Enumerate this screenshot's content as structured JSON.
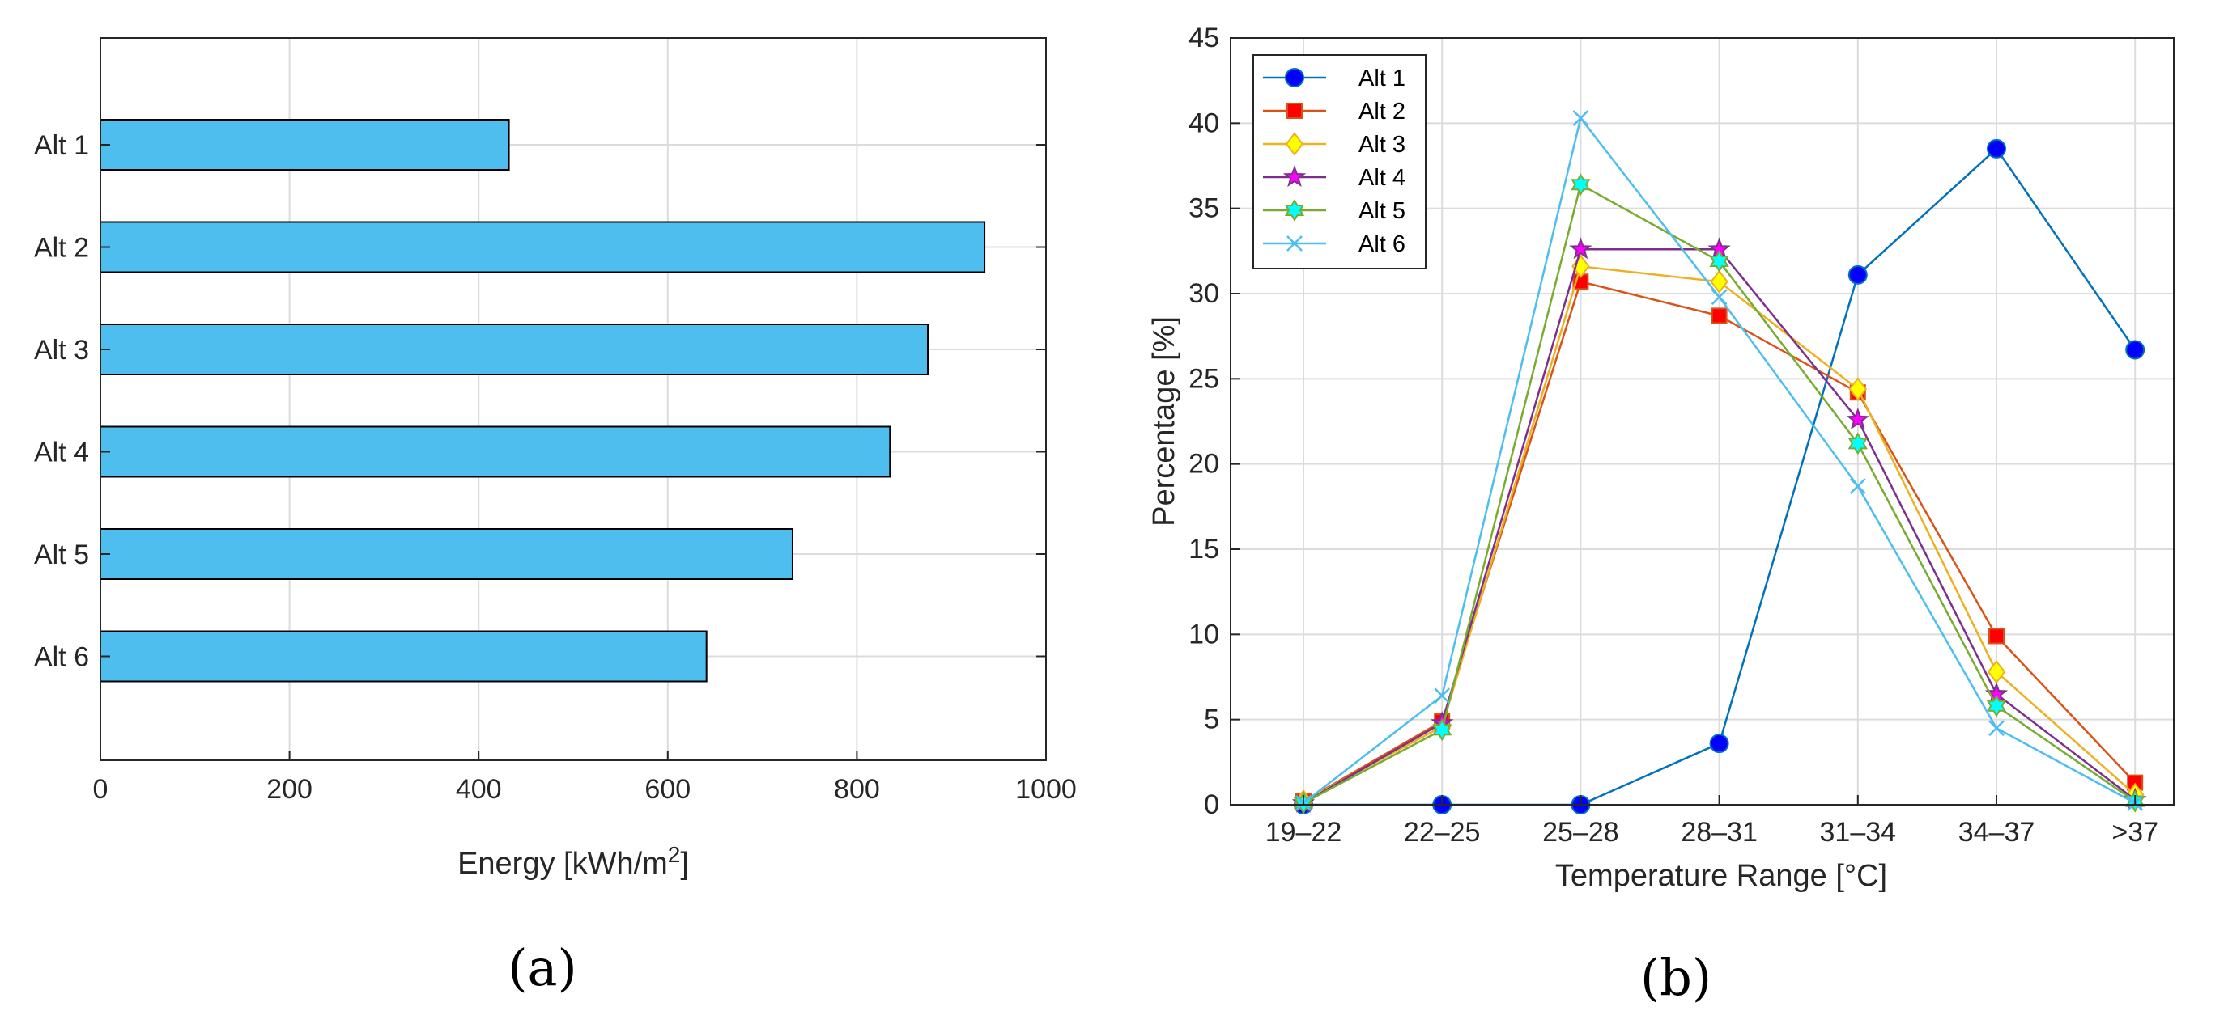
{
  "panels": {
    "a": {
      "label": "(a)"
    },
    "b": {
      "label": "(b)"
    }
  },
  "colors": {
    "bar_fill": "#4DBEEE",
    "alt1": "#0072BD",
    "alt1_marker": "#0000FF",
    "alt2": "#D95319",
    "alt2_marker": "#FF0000",
    "alt3": "#EDB120",
    "alt3_marker": "#FFFF00",
    "alt4": "#7E2F8E",
    "alt4_marker": "#FF00FF",
    "alt5": "#77AC30",
    "alt5_marker": "#00FFFF",
    "alt6": "#4DBEEE"
  },
  "chart_data": [
    {
      "type": "bar",
      "orientation": "horizontal",
      "categories": [
        "Alt 1",
        "Alt 2",
        "Alt 3",
        "Alt 4",
        "Alt 5",
        "Alt 6"
      ],
      "values": [
        432,
        935,
        875,
        835,
        732,
        641
      ],
      "xlabel": "Energy [kWh/m",
      "xlabel_sup": "2",
      "xlabel_end": "]",
      "xlim": [
        0,
        1000
      ],
      "xticks": [
        "0",
        "200",
        "400",
        "600",
        "800",
        "1000"
      ],
      "grid": true
    },
    {
      "type": "line",
      "categories": [
        "19–22",
        "22–25",
        "25–28",
        "28–31",
        "31–34",
        "34–37",
        ">37"
      ],
      "ylabel": "Percentage [%]",
      "xlabel": "Temperature Range [°C]",
      "ylim": [
        0,
        45
      ],
      "yticks": [
        "0",
        "5",
        "10",
        "15",
        "20",
        "25",
        "30",
        "35",
        "40",
        "45"
      ],
      "grid": true,
      "legend_position": "top-left",
      "series": [
        {
          "name": "Alt 1",
          "marker": "circle",
          "values": [
            0,
            0,
            0,
            3.6,
            31.1,
            38.5,
            26.7
          ]
        },
        {
          "name": "Alt 2",
          "marker": "square",
          "values": [
            0.2,
            4.9,
            30.7,
            28.7,
            24.2,
            9.9,
            1.3
          ]
        },
        {
          "name": "Alt 3",
          "marker": "diamond",
          "values": [
            0.2,
            4.6,
            31.6,
            30.7,
            24.4,
            7.8,
            0.6
          ]
        },
        {
          "name": "Alt 4",
          "marker": "star",
          "values": [
            0.1,
            4.8,
            32.6,
            32.6,
            22.6,
            6.5,
            0.3
          ]
        },
        {
          "name": "Alt 5",
          "marker": "hexagram",
          "values": [
            0.1,
            4.4,
            36.4,
            31.9,
            21.2,
            5.8,
            0.2
          ]
        },
        {
          "name": "Alt 6",
          "marker": "x",
          "values": [
            0.1,
            6.4,
            40.3,
            29.8,
            18.7,
            4.5,
            0.1
          ]
        }
      ]
    }
  ]
}
